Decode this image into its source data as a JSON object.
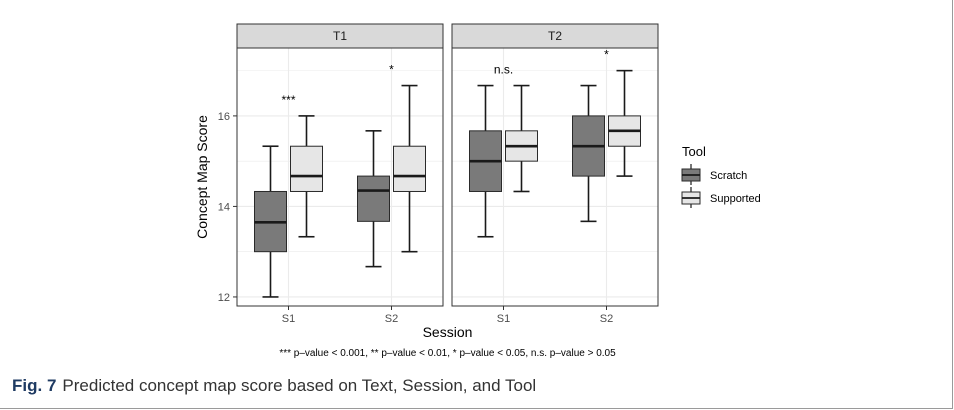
{
  "chart_data": {
    "type": "box",
    "ylabel": "Concept Map Score",
    "xlabel": "Session",
    "yticks": [
      12,
      14,
      16
    ],
    "ylim": [
      11.8,
      17.5
    ],
    "categories": [
      "S1",
      "S2"
    ],
    "panels": [
      {
        "name": "T1",
        "groups": [
          {
            "session": "S1",
            "significance": "***",
            "boxes": [
              {
                "tool": "Scratch",
                "min": 12.0,
                "q1": 13.0,
                "median": 13.65,
                "q3": 14.33,
                "max": 15.33
              },
              {
                "tool": "Supported",
                "min": 13.33,
                "q1": 14.33,
                "median": 14.67,
                "q3": 15.33,
                "max": 16.0
              }
            ]
          },
          {
            "session": "S2",
            "significance": "*",
            "boxes": [
              {
                "tool": "Scratch",
                "min": 12.67,
                "q1": 13.67,
                "median": 14.35,
                "q3": 14.67,
                "max": 15.67
              },
              {
                "tool": "Supported",
                "min": 13.0,
                "q1": 14.33,
                "median": 14.67,
                "q3": 15.33,
                "max": 16.67
              }
            ]
          }
        ]
      },
      {
        "name": "T2",
        "groups": [
          {
            "session": "S1",
            "significance": "n.s.",
            "boxes": [
              {
                "tool": "Scratch",
                "min": 13.33,
                "q1": 14.33,
                "median": 15.0,
                "q3": 15.67,
                "max": 16.67
              },
              {
                "tool": "Supported",
                "min": 14.33,
                "q1": 15.0,
                "median": 15.33,
                "q3": 15.67,
                "max": 16.67
              }
            ]
          },
          {
            "session": "S2",
            "significance": "*",
            "boxes": [
              {
                "tool": "Scratch",
                "min": 13.67,
                "q1": 14.67,
                "median": 15.33,
                "q3": 16.0,
                "max": 16.67
              },
              {
                "tool": "Supported",
                "min": 14.67,
                "q1": 15.33,
                "median": 15.67,
                "q3": 16.0,
                "max": 17.0
              }
            ]
          }
        ]
      }
    ],
    "legend": {
      "title": "Tool",
      "placement": "right",
      "items": [
        {
          "name": "Scratch",
          "color": "#7a7a7a"
        },
        {
          "name": "Supported",
          "color": "#e6e6e6"
        }
      ]
    },
    "footnote": "*** p–value < 0.001, ** p–value < 0.01, * p–value < 0.05, n.s. p–value > 0.05",
    "colors": {
      "strip": "#d9d9d9",
      "grid": "#ebebeb",
      "panel_border": "#333333"
    }
  },
  "caption": {
    "label": "Fig. 7",
    "text": "Predicted concept map score based on Text, Session, and Tool"
  }
}
